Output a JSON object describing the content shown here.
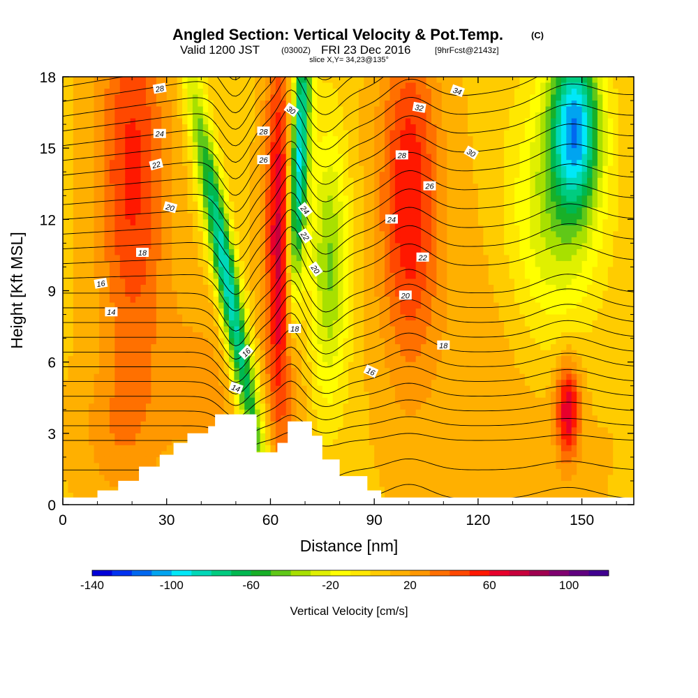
{
  "title": {
    "main": "Angled Section: Vertical Velocity & Pot.Temp.",
    "unit": "(C)",
    "valid_prefix": "Valid 1200 JST",
    "valid_z": "(0300Z)",
    "valid_date": "FRI 23 Dec 2016",
    "valid_fcst": "[9hrFcst@2143z]",
    "slice": "slice X,Y= 34,23@135°"
  },
  "chart_data": {
    "type": "heatmap",
    "title": "Angled Section: Vertical Velocity & Pot.Temp.",
    "xlabel": "Distance [nm]",
    "ylabel": "Height [Kft MSL]",
    "xlim": [
      0,
      165
    ],
    "ylim": [
      0,
      18
    ],
    "x_ticks": [
      "0",
      "30",
      "60",
      "90",
      "120",
      "150"
    ],
    "y_ticks": [
      "0",
      "3",
      "6",
      "9",
      "12",
      "15",
      "18"
    ],
    "colorbar": {
      "label": "Vertical Velocity [cm/s]",
      "range": [
        -140,
        120
      ],
      "step": 10,
      "tick_labels": [
        "-140",
        "-100",
        "-60",
        "-20",
        "20",
        "60",
        "100"
      ],
      "colors": [
        "#0000d8",
        "#0032f0",
        "#0068f0",
        "#00a4f0",
        "#00e8f8",
        "#00d8b8",
        "#00cc80",
        "#00b850",
        "#18b028",
        "#60c818",
        "#a8e000",
        "#e0f000",
        "#ffff00",
        "#ffe800",
        "#ffcc00",
        "#ffb000",
        "#ff9800",
        "#ff7000",
        "#ff4800",
        "#ff1800",
        "#e8002c",
        "#c8003c",
        "#a00050",
        "#800070",
        "#600080",
        "#400090"
      ]
    },
    "terrain_kft": [
      [
        0,
        0.3
      ],
      [
        10,
        0.6
      ],
      [
        16,
        1.0
      ],
      [
        22,
        1.6
      ],
      [
        28,
        2.1
      ],
      [
        32,
        2.6
      ],
      [
        36,
        3.0
      ],
      [
        42,
        3.3
      ],
      [
        44,
        3.8
      ],
      [
        52,
        3.8
      ],
      [
        56,
        2.2
      ],
      [
        62,
        2.6
      ],
      [
        65,
        3.5
      ],
      [
        70,
        3.5
      ],
      [
        72,
        2.9
      ],
      [
        75,
        1.9
      ],
      [
        80,
        1.2
      ],
      [
        88,
        0.6
      ],
      [
        92,
        0.3
      ],
      [
        165,
        0.3
      ]
    ],
    "updrafts": [
      {
        "x": 20,
        "y": 14,
        "sx": 7,
        "sy": 6,
        "v": 45
      },
      {
        "x": 64,
        "y": 8,
        "sx": 3,
        "sy": 5,
        "v": 55
      },
      {
        "x": 62,
        "y": 14,
        "sx": 3,
        "sy": 5,
        "v": 35
      },
      {
        "x": 100,
        "y": 13,
        "sx": 6,
        "sy": 5,
        "v": 50
      },
      {
        "x": 146,
        "y": 4,
        "sx": 2.5,
        "sy": 1.5,
        "v": 60
      },
      {
        "x": 40,
        "y": 5,
        "sx": 12,
        "sy": 3,
        "v": 15
      },
      {
        "x": 130,
        "y": 7,
        "sx": 20,
        "sy": 6,
        "v": 10
      },
      {
        "x": 15,
        "y": 3,
        "sx": 8,
        "sy": 2,
        "v": 15
      }
    ],
    "downdrafts": [
      {
        "x": 48,
        "y": 9,
        "sx": 2.5,
        "sy": 6,
        "v": -100,
        "tilt": -1.2
      },
      {
        "x": 68,
        "y": 14,
        "sx": 2,
        "sy": 5,
        "v": -110,
        "tilt": 0.3
      },
      {
        "x": 77,
        "y": 10,
        "sx": 4,
        "sy": 4,
        "v": -50,
        "tilt": 0
      },
      {
        "x": 148,
        "y": 16,
        "sx": 5,
        "sy": 2.5,
        "v": -100,
        "tilt": 0
      },
      {
        "x": 142,
        "y": 12,
        "sx": 10,
        "sy": 4,
        "v": -45,
        "tilt": 0
      }
    ],
    "isentropes": {
      "levels": [
        6,
        8,
        10,
        11,
        12,
        13,
        14,
        15,
        16,
        17,
        18,
        19,
        20,
        21,
        22,
        23,
        24,
        25,
        26,
        27,
        28,
        29,
        30,
        31,
        32,
        33,
        34,
        35
      ],
      "labels": [
        {
          "text": "28",
          "x": 28,
          "y": 17.5,
          "rot": -10
        },
        {
          "text": "24",
          "x": 28,
          "y": 15.6,
          "rot": 0
        },
        {
          "text": "22",
          "x": 27,
          "y": 14.3,
          "rot": -15
        },
        {
          "text": "20",
          "x": 31,
          "y": 12.5,
          "rot": 15
        },
        {
          "text": "18",
          "x": 23,
          "y": 10.6,
          "rot": 0
        },
        {
          "text": "16",
          "x": 11,
          "y": 9.3,
          "rot": -10
        },
        {
          "text": "14",
          "x": 14,
          "y": 8.1,
          "rot": 0
        },
        {
          "text": "30",
          "x": 66,
          "y": 16.6,
          "rot": 35
        },
        {
          "text": "28",
          "x": 58,
          "y": 15.7,
          "rot": 0
        },
        {
          "text": "26",
          "x": 58,
          "y": 14.5,
          "rot": 0
        },
        {
          "text": "24",
          "x": 70,
          "y": 12.4,
          "rot": 50
        },
        {
          "text": "22",
          "x": 70,
          "y": 11.3,
          "rot": 55
        },
        {
          "text": "20",
          "x": 73,
          "y": 9.9,
          "rot": 55
        },
        {
          "text": "18",
          "x": 67,
          "y": 7.4,
          "rot": 0
        },
        {
          "text": "16",
          "x": 53,
          "y": 6.4,
          "rot": -45
        },
        {
          "text": "14",
          "x": 50,
          "y": 4.9,
          "rot": 20
        },
        {
          "text": "32",
          "x": 103,
          "y": 16.7,
          "rot": 10
        },
        {
          "text": "34",
          "x": 114,
          "y": 17.4,
          "rot": 20
        },
        {
          "text": "30",
          "x": 118,
          "y": 14.8,
          "rot": 30
        },
        {
          "text": "28",
          "x": 98,
          "y": 14.7,
          "rot": 0
        },
        {
          "text": "26",
          "x": 106,
          "y": 13.4,
          "rot": 0
        },
        {
          "text": "24",
          "x": 95,
          "y": 12.0,
          "rot": 0
        },
        {
          "text": "22",
          "x": 104,
          "y": 10.4,
          "rot": 0
        },
        {
          "text": "20",
          "x": 99,
          "y": 8.8,
          "rot": 0
        },
        {
          "text": "18",
          "x": 110,
          "y": 6.7,
          "rot": 0
        },
        {
          "text": "16",
          "x": 89,
          "y": 5.6,
          "rot": 25
        }
      ]
    }
  }
}
